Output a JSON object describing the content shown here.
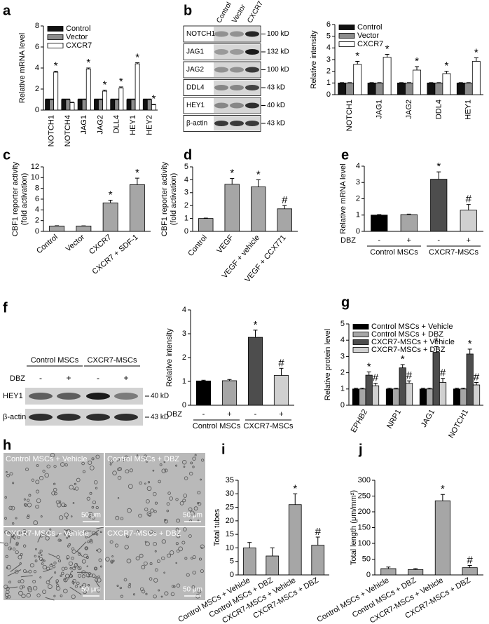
{
  "chart_data": [
    {
      "type": "bar",
      "panel": "a",
      "y_label": "Relative mRNA level",
      "categories": [
        "NOTCH1",
        "NOTCH4",
        "JAG1",
        "JAG2",
        "DLL4",
        "HEY1",
        "HEY2"
      ],
      "series": [
        {
          "name": "Control",
          "color": "#111111",
          "values": [
            1,
            1,
            1,
            1,
            1,
            1,
            1
          ],
          "errors": [
            0.05,
            0.05,
            0.05,
            0.05,
            0.05,
            0.05,
            0.05
          ]
        },
        {
          "name": "Vector",
          "color": "#8c8c8c",
          "values": [
            1,
            1,
            1,
            1,
            1,
            1,
            1
          ],
          "errors": [
            0.05,
            0.05,
            0.05,
            0.05,
            0.05,
            0.05,
            0.05
          ]
        },
        {
          "name": "CXCR7",
          "color": "#ffffff",
          "values": [
            3.6,
            0.7,
            3.9,
            1.8,
            2.1,
            4.4,
            0.5
          ],
          "errors": [
            0.1,
            0.05,
            0.1,
            0.1,
            0.1,
            0.1,
            0.05
          ],
          "annotations": [
            "*",
            null,
            "*",
            "*",
            "*",
            "*",
            "*"
          ]
        }
      ],
      "ylim": [
        0,
        8
      ],
      "yticks": [
        0,
        2,
        4,
        6,
        8
      ],
      "legend": "top-left"
    },
    {
      "type": "bar",
      "y_label": "Relative intensity",
      "categories": [
        "NOTCH1",
        "JAG1",
        "JAG2",
        "DDL4",
        "HEY1"
      ],
      "series": [
        {
          "name": "Control",
          "color": "#111111",
          "values": [
            1,
            1,
            1,
            1,
            1
          ],
          "errors": [
            0.03,
            0.03,
            0.03,
            0.03,
            0.03
          ]
        },
        {
          "name": "Vector",
          "color": "#8c8c8c",
          "values": [
            1,
            1,
            1,
            1,
            1
          ],
          "errors": [
            0.03,
            0.03,
            0.03,
            0.03,
            0.03
          ]
        },
        {
          "name": "CXCR7",
          "color": "#ffffff",
          "values": [
            2.6,
            3.2,
            2.1,
            1.8,
            2.85
          ],
          "errors": [
            0.25,
            0.25,
            0.3,
            0.2,
            0.3
          ],
          "annotations": [
            "*",
            "*",
            "*",
            "*",
            "*"
          ]
        }
      ],
      "ylim": [
        0,
        6
      ],
      "yticks": [
        0,
        1,
        2,
        3,
        4,
        5,
        6
      ],
      "legend": "top-left"
    },
    {
      "type": "bar",
      "panel": "c",
      "y_label": [
        "CBF1 reporter activity",
        "(fold activation)"
      ],
      "categories": [
        "Control",
        "Vector",
        "CXCR7",
        "CXCR7 + SDF-1"
      ],
      "values": [
        1,
        1,
        5.3,
        8.7
      ],
      "errors": [
        0.05,
        0.03,
        0.5,
        1.2
      ],
      "annotations": [
        null,
        null,
        "*",
        "*"
      ],
      "color": "#a6a6a6",
      "ylim": [
        0,
        12
      ],
      "yticks": [
        0,
        2,
        4,
        6,
        8,
        10,
        12
      ]
    },
    {
      "type": "bar",
      "panel": "d",
      "y_label": [
        "CBF1 reporter activity",
        "(fold activation)"
      ],
      "categories": [
        "Control",
        "VEGF",
        "VEGF + vehicle",
        "VEGF + CCX771"
      ],
      "values": [
        1,
        3.65,
        3.45,
        1.75
      ],
      "errors": [
        0.03,
        0.45,
        0.55,
        0.25
      ],
      "annotations": [
        null,
        "*",
        "*",
        "#"
      ],
      "color": "#a6a6a6",
      "ylim": [
        0,
        5
      ],
      "yticks": [
        0,
        1,
        2,
        3,
        4,
        5
      ]
    },
    {
      "type": "bar",
      "panel": "e",
      "y_label": "Relative mRNA level",
      "row_label": "DBZ",
      "categories": [
        "-",
        "+",
        "-",
        "+"
      ],
      "groups": [
        "Control MSCs",
        "CXCR7-MSCs"
      ],
      "values": [
        1,
        1.03,
        3.2,
        1.3
      ],
      "errors": [
        0.03,
        0.03,
        0.45,
        0.35
      ],
      "annotations": [
        null,
        null,
        "*",
        "#"
      ],
      "colors": [
        "#000000",
        "#a6a6a6",
        "#4d4d4d",
        "#d0d0d0"
      ],
      "ylim": [
        0,
        4
      ],
      "yticks": [
        0,
        1,
        2,
        3,
        4
      ]
    },
    {
      "type": "bar",
      "y_label": "Relative intensity",
      "row_label": "DBZ",
      "categories": [
        "-",
        "+",
        "-",
        "+"
      ],
      "groups": [
        "Control MSCs",
        "CXCR7-MSCs"
      ],
      "values": [
        1.02,
        1.03,
        2.85,
        1.25
      ],
      "errors": [
        0.03,
        0.05,
        0.3,
        0.3
      ],
      "annotations": [
        null,
        null,
        "*",
        "#"
      ],
      "colors": [
        "#000000",
        "#a6a6a6",
        "#4d4d4d",
        "#d0d0d0"
      ],
      "ylim": [
        0,
        4
      ],
      "yticks": [
        0,
        1,
        2,
        3,
        4
      ]
    },
    {
      "type": "bar",
      "panel": "g",
      "y_label": "Relative protein level",
      "categories": [
        "EPHB2",
        "NRP1",
        "JAG1",
        "NOTCH1"
      ],
      "series": [
        {
          "name": "Control MSCs + Vehicle",
          "color": "#000000",
          "values": [
            1,
            1,
            1,
            1
          ],
          "errors": [
            0.05,
            0.05,
            0.05,
            0.05
          ]
        },
        {
          "name": "Control MSCs + DBZ",
          "color": "#a6a6a6",
          "values": [
            1,
            1,
            1,
            1
          ],
          "errors": [
            0.05,
            0.05,
            0.05,
            0.05
          ]
        },
        {
          "name": "CXCR7-MSCs + Vehicle",
          "color": "#4d4d4d",
          "values": [
            1.85,
            2.3,
            3.25,
            3.15
          ],
          "errors": [
            0.2,
            0.2,
            0.35,
            0.3
          ],
          "annotations": [
            "*",
            "*",
            "*",
            "*"
          ]
        },
        {
          "name": "CXCR7-MSCs + DBZ",
          "color": "#d0d0d0",
          "values": [
            1.2,
            1.35,
            1.4,
            1.25
          ],
          "errors": [
            0.15,
            0.15,
            0.25,
            0.15
          ],
          "annotations": [
            "#",
            "#",
            "#",
            "#"
          ]
        }
      ],
      "ylim": [
        0,
        5
      ],
      "yticks": [
        0,
        1,
        2,
        3,
        4,
        5
      ],
      "legend": "top-left"
    },
    {
      "type": "bar",
      "panel": "i",
      "y_label": "Total tubes",
      "categories": [
        "Control MSCs + Vehicle",
        "Control MSCs + DBZ",
        "CXCR7-MSCs + Vehicle",
        "CXCR7-MSCs + DBZ"
      ],
      "values": [
        10,
        7,
        26,
        11
      ],
      "errors": [
        2,
        3,
        4,
        3
      ],
      "annotations": [
        null,
        null,
        "*",
        "#"
      ],
      "color": "#a6a6a6",
      "ylim": [
        0,
        35
      ],
      "yticks": [
        0,
        5,
        10,
        15,
        20,
        25,
        30,
        35
      ]
    },
    {
      "type": "bar",
      "panel": "j",
      "y_label": "Total length (μm/mm²)",
      "categories": [
        "Control MSCs + Vehicle",
        "Control MSCs + DBZ",
        "CXCR7-MSCs + Vehicle",
        "CXCR7-MSCs + DBZ"
      ],
      "values": [
        20,
        17,
        235,
        23
      ],
      "errors": [
        5,
        3,
        20,
        7
      ],
      "annotations": [
        null,
        null,
        "*",
        "#"
      ],
      "color": "#a6a6a6",
      "ylim": [
        0,
        300
      ],
      "yticks": [
        0,
        50,
        100,
        150,
        200,
        250,
        300
      ]
    }
  ],
  "blots": [
    {
      "panel": "b",
      "lanes": [
        "Control",
        "Vector",
        "CXCR7"
      ],
      "rows": [
        {
          "name": "NOTCH1",
          "size": "100 kD"
        },
        {
          "name": "JAG1",
          "size": "132 kD"
        },
        {
          "name": "JAG2",
          "size": "100 kD"
        },
        {
          "name": "DDL4",
          "size": "43 kD"
        },
        {
          "name": "HEY1",
          "size": "40 kD"
        },
        {
          "name": "β-actin",
          "size": "43 kD"
        }
      ]
    },
    {
      "panel": "f",
      "groups": [
        "Control MSCs",
        "CXCR7-MSCs"
      ],
      "row_label": "DBZ",
      "lanes": [
        "-",
        "+",
        "-",
        "+"
      ],
      "rows": [
        {
          "name": "HEY1",
          "size": "40 kD"
        },
        {
          "name": "β-actin",
          "size": "43 kD"
        }
      ]
    }
  ],
  "micrographs": {
    "panel": "h",
    "images": [
      {
        "label": "Control MSCs + Vehicle",
        "scale": "50 μm"
      },
      {
        "label": "Control MSCs + DBZ",
        "scale": "50 μm"
      },
      {
        "label": "CXCR7-MSCs + Vehicle",
        "scale": "50 μm"
      },
      {
        "label": "CXCR7-MSCs + DBZ",
        "scale": "50 μm"
      }
    ]
  }
}
